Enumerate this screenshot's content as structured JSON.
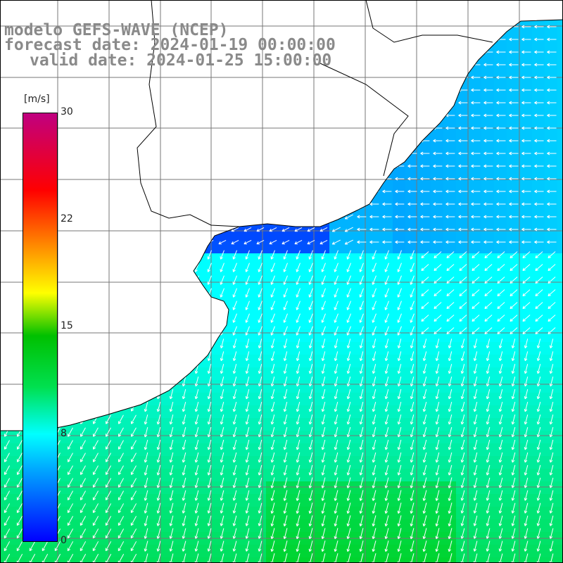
{
  "title": {
    "model": "modelo GEFS-WAVE (NCEP)",
    "forecast": "forecast date: 2024-01-19 00:00:00",
    "valid": "valid date: 2024-01-25 15:00:00"
  },
  "colorbar": {
    "unit": "[m/s]",
    "ticks": [
      "30",
      "22",
      "15",
      "8",
      "0"
    ],
    "colors": [
      "#0000ff",
      "#00aaff",
      "#00ffff",
      "#00c000",
      "#ffff00",
      "#ff8000",
      "#ff0000",
      "#c00080"
    ]
  },
  "map": {
    "field": "wind speed and direction",
    "land_color": "#ffffff",
    "grid": true,
    "arrow_color": "#ffffff"
  }
}
